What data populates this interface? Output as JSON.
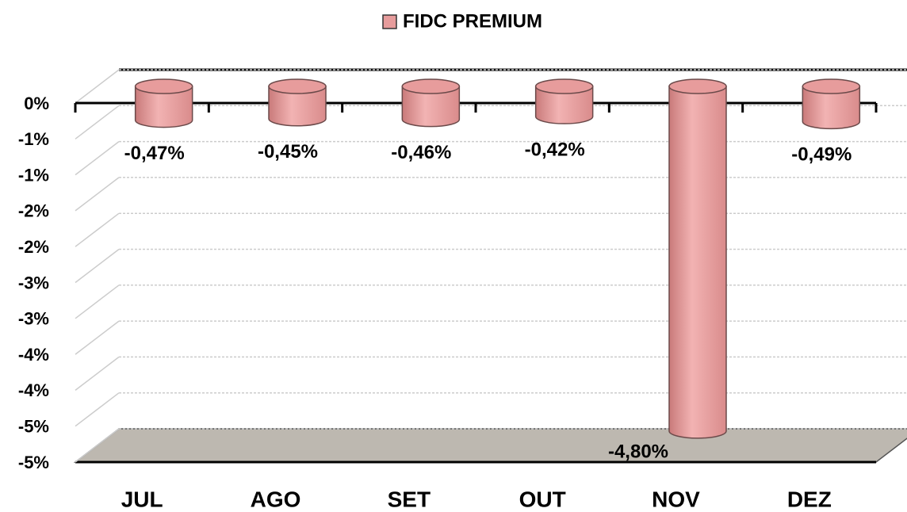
{
  "chart_data": {
    "type": "bar3d",
    "categories": [
      "JUL",
      "AGO",
      "SET",
      "OUT",
      "NOV",
      "DEZ"
    ],
    "series": [
      {
        "name": "FIDC PREMIUM",
        "color": "#e79c9c",
        "values": [
          -0.47,
          -0.45,
          -0.46,
          -0.42,
          -4.8,
          -0.49
        ],
        "value_labels": [
          "-0,47%",
          "-0,45%",
          "-0,46%",
          "-0,42%",
          "-4,80%",
          "-0,49%"
        ]
      }
    ],
    "ylim": [
      -5,
      0
    ],
    "yticks": [
      {
        "value": 0,
        "label": "0%"
      },
      {
        "value": -0.5,
        "label": "-1%"
      },
      {
        "value": -1,
        "label": "-1%"
      },
      {
        "value": -1.5,
        "label": "-2%"
      },
      {
        "value": -2,
        "label": "-2%"
      },
      {
        "value": -2.5,
        "label": "-3%"
      },
      {
        "value": -3,
        "label": "-3%"
      },
      {
        "value": -3.5,
        "label": "-4%"
      },
      {
        "value": -4,
        "label": "-4%"
      },
      {
        "value": -4.5,
        "label": "-5%"
      },
      {
        "value": -5,
        "label": "-5%"
      }
    ],
    "grid": true,
    "legend": "top"
  }
}
